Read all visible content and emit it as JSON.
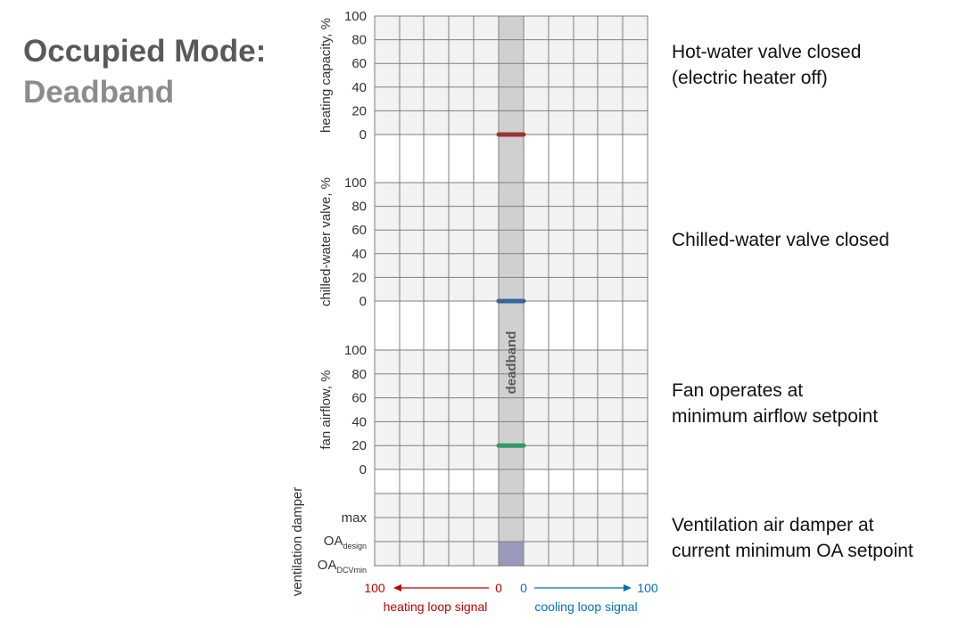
{
  "title": {
    "line1": "Occupied Mode:",
    "line2": "Deadband"
  },
  "colors": {
    "heating": "#c00000",
    "cooling": "#0070c0",
    "heater_bar": "#993333",
    "chw_bar": "#336699",
    "fan_bar": "#339966",
    "damper_fill": "#9999bb",
    "deadband_fill": "#d0d0d0",
    "panel_fill": "#f2f2f2"
  },
  "panels": [
    {
      "axis_label": "heating capacity, %",
      "ticks": [
        "100",
        "80",
        "60",
        "40",
        "20",
        "0"
      ],
      "level_percent": 0
    },
    {
      "axis_label": "chilled-water valve, %",
      "ticks": [
        "100",
        "80",
        "60",
        "40",
        "20",
        "0"
      ],
      "level_percent": 0
    },
    {
      "axis_label": "fan airflow, %",
      "ticks": [
        "100",
        "80",
        "60",
        "40",
        "20",
        "0"
      ],
      "level_percent": 20
    }
  ],
  "damper_panel": {
    "axis_label": "ventilation damper",
    "tick_max": "max",
    "tick_design": {
      "base": "OA",
      "sub": "design"
    },
    "tick_dcv": {
      "base": "OA",
      "sub": "DCVmin"
    },
    "fill_from": "OA_DCVmin",
    "fill_to": "OA_design"
  },
  "deadband_label": "deadband",
  "x_axis": {
    "heating_max": "100",
    "heating_zero": "0",
    "cooling_zero": "0",
    "cooling_max": "100",
    "heating_label": "heating loop signal",
    "cooling_label": "cooling loop signal"
  },
  "descriptions": [
    {
      "text": "Hot-water valve closed\n(electric heater off)"
    },
    {
      "text": "Chilled-water valve closed"
    },
    {
      "text": "Fan operates at\nminimum airflow setpoint"
    },
    {
      "text": "Ventilation air damper at\ncurrent minimum OA setpoint"
    }
  ]
}
